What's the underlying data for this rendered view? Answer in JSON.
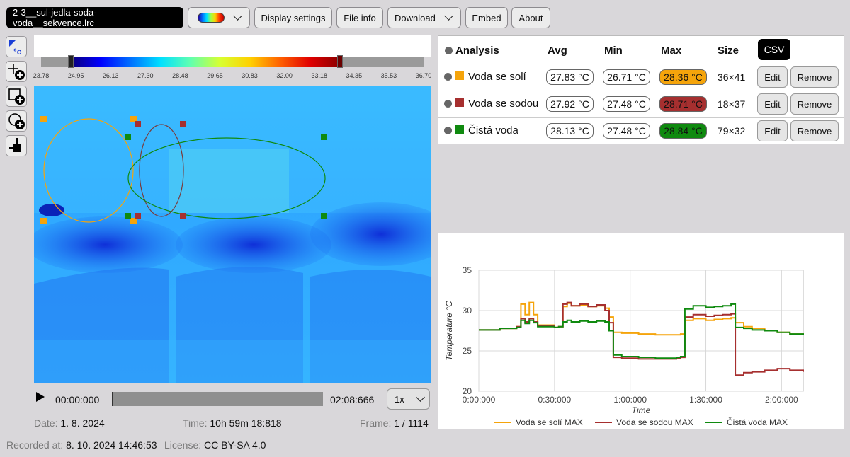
{
  "toolbar": {
    "file_name": "2-3__sul-jedla-soda-voda__sekvence.lrc",
    "display_settings": "Display settings",
    "file_info": "File info",
    "download": "Download",
    "embed": "Embed",
    "about": "About"
  },
  "tools": [
    "range-auto-icon",
    "add-point-icon",
    "add-rect-icon",
    "add-ellipse-icon",
    "edit-tool-icon"
  ],
  "scale": {
    "ticks": [
      "23.78",
      "24.95",
      "26.13",
      "27.30",
      "28.48",
      "29.65",
      "30.83",
      "32.00",
      "33.18",
      "34.35",
      "35.53",
      "36.70"
    ]
  },
  "player": {
    "current": "00:00:000",
    "total": "02:08:666",
    "speed": "1x",
    "progress": 0.0
  },
  "meta": {
    "date_label": "Date:",
    "date": "1. 8. 2024",
    "time_label": "Time:",
    "time": "10h 59m 18:818",
    "frame_label": "Frame:",
    "frame": "1 / 1114",
    "recorded_label": "Recorded at:",
    "recorded": "8. 10. 2024 14:46:53",
    "license_label": "License:",
    "license": "CC BY-SA 4.0"
  },
  "analysis": {
    "headers": {
      "name": "Analysis",
      "avg": "Avg",
      "min": "Min",
      "max": "Max",
      "size": "Size",
      "csv": "CSV"
    },
    "rows": [
      {
        "name": "Voda se solí",
        "color": "#f5a40b",
        "avg": "27.83 °C",
        "min": "26.71 °C",
        "max": "28.36 °C",
        "size": "36×41",
        "edit": "Edit",
        "remove": "Remove"
      },
      {
        "name": "Voda se sodou",
        "color": "#a62f2f",
        "avg": "27.92 °C",
        "min": "27.48 °C",
        "max": "28.71 °C",
        "size": "18×37",
        "edit": "Edit",
        "remove": "Remove"
      },
      {
        "name": "Čistá voda",
        "color": "#0f8a0f",
        "avg": "28.13 °C",
        "min": "27.48 °C",
        "max": "28.84 °C",
        "size": "79×32",
        "edit": "Edit",
        "remove": "Remove"
      }
    ]
  },
  "chart_data": {
    "type": "line",
    "title": "",
    "xlabel": "Time",
    "ylabel": "Temperature °C",
    "ylim": [
      20,
      35
    ],
    "xlim": [
      0,
      7716
    ],
    "yticks": [
      "20",
      "25",
      "30",
      "35"
    ],
    "xticks": [
      {
        "t": 0,
        "label": "0:00:000"
      },
      {
        "t": 1800,
        "label": "0:30:000"
      },
      {
        "t": 3600,
        "label": "1:00:000"
      },
      {
        "t": 5400,
        "label": "1:30:000"
      },
      {
        "t": 7200,
        "label": "2:00:000"
      }
    ],
    "grid": true,
    "legend": "bottom",
    "series": [
      {
        "name": "Voda se solí MAX",
        "color": "#f5a40b",
        "x": [
          0,
          500,
          900,
          1000,
          1100,
          1200,
          1300,
          1400,
          1800,
          1900,
          2000,
          2100,
          2200,
          2400,
          2600,
          2800,
          3000,
          3100,
          3200,
          3400,
          3800,
          4200,
          4500,
          4700,
          4800,
          4900,
          5100,
          5400,
          5600,
          5800,
          6000,
          6100,
          6300,
          6500,
          6800,
          7100,
          7400,
          7716
        ],
        "y": [
          27.6,
          27.8,
          28.0,
          30.8,
          29.5,
          31.0,
          29.5,
          28.2,
          27.9,
          28.0,
          30.5,
          30.9,
          30.6,
          30.7,
          30.5,
          30.6,
          30.3,
          29.2,
          27.3,
          27.2,
          27.1,
          27.0,
          27.0,
          27.0,
          27.1,
          28.8,
          29.0,
          28.8,
          28.9,
          29.0,
          29.1,
          28.5,
          28.0,
          27.8,
          27.5,
          27.3,
          27.1,
          27.0
        ]
      },
      {
        "name": "Voda se sodou MAX",
        "color": "#a62f2f",
        "x": [
          0,
          500,
          900,
          1000,
          1100,
          1200,
          1300,
          1400,
          1800,
          1900,
          2000,
          2100,
          2200,
          2400,
          2600,
          2800,
          3000,
          3100,
          3200,
          3400,
          3800,
          4200,
          4500,
          4700,
          4800,
          4900,
          5100,
          5400,
          5600,
          5800,
          6000,
          6100,
          6300,
          6500,
          6800,
          7100,
          7400,
          7716
        ],
        "y": [
          27.6,
          27.8,
          28.0,
          29.0,
          28.6,
          29.0,
          28.6,
          28.1,
          27.9,
          28.0,
          30.8,
          31.0,
          30.6,
          30.8,
          30.5,
          30.7,
          30.0,
          28.5,
          24.2,
          24.1,
          24.0,
          24.0,
          24.0,
          24.1,
          24.2,
          29.2,
          29.5,
          29.3,
          29.4,
          29.5,
          29.6,
          22.0,
          22.3,
          22.4,
          22.6,
          22.8,
          22.6,
          22.4
        ]
      },
      {
        "name": "Čistá voda MAX",
        "color": "#0f8a0f",
        "x": [
          0,
          500,
          900,
          1000,
          1100,
          1200,
          1300,
          1400,
          1800,
          1900,
          2000,
          2100,
          2200,
          2400,
          2600,
          2800,
          3000,
          3100,
          3200,
          3400,
          3800,
          4200,
          4500,
          4700,
          4800,
          4900,
          5100,
          5400,
          5600,
          5800,
          6000,
          6100,
          6300,
          6500,
          6800,
          7100,
          7400,
          7716
        ],
        "y": [
          27.6,
          27.8,
          27.9,
          28.8,
          28.4,
          28.8,
          28.5,
          28.0,
          27.9,
          28.0,
          28.6,
          28.8,
          28.6,
          28.7,
          28.6,
          28.7,
          28.6,
          27.5,
          24.5,
          24.3,
          24.2,
          24.1,
          24.1,
          24.2,
          24.3,
          30.2,
          30.6,
          30.4,
          30.5,
          30.6,
          30.8,
          27.9,
          27.8,
          27.6,
          27.5,
          27.3,
          27.1,
          27.0
        ]
      }
    ]
  }
}
